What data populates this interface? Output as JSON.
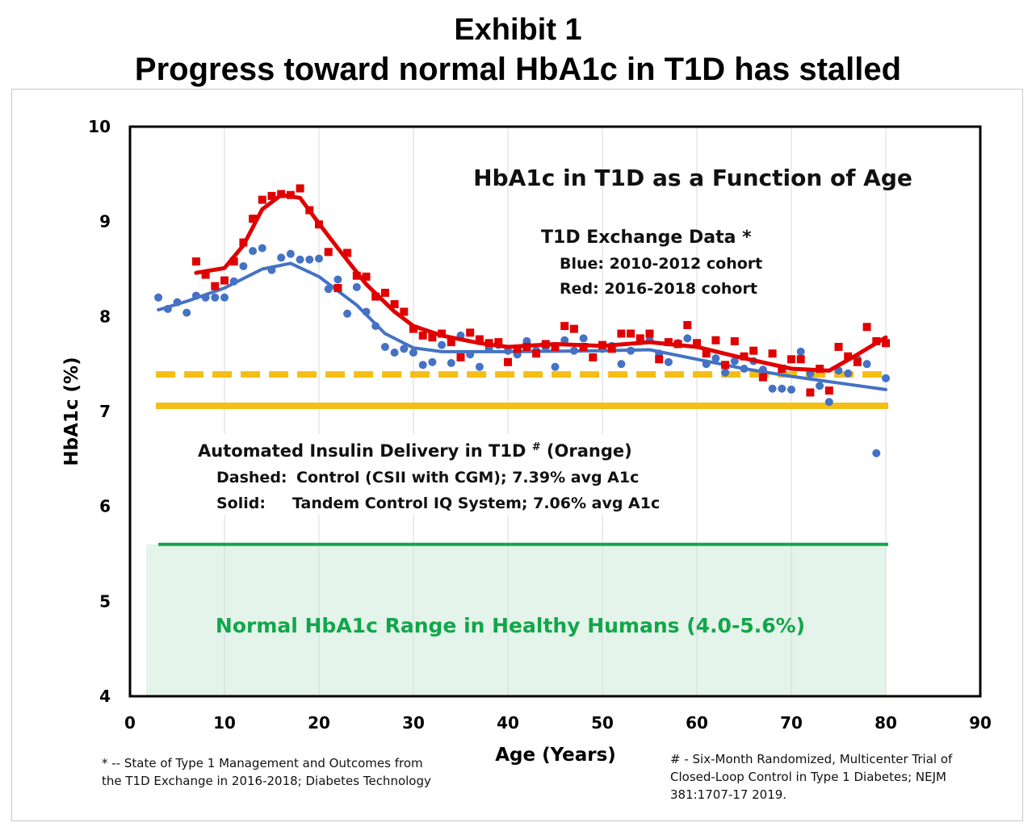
{
  "exhibit": {
    "title": "Exhibit 1",
    "subtitle": "Progress toward normal HbA1c in T1D has stalled"
  },
  "chart_data": {
    "type": "scatter",
    "title": "HbA1c in T1D as a Function of Age",
    "xlabel": "Age (Years)",
    "ylabel": "HbA1c (%)",
    "xlim": [
      0,
      90
    ],
    "ylim": [
      4,
      10
    ],
    "xticks": [
      0,
      10,
      20,
      30,
      40,
      50,
      60,
      70,
      80,
      90
    ],
    "yticks": [
      4,
      5,
      6,
      7,
      8,
      9,
      10
    ],
    "grid": "vertical",
    "legend": {
      "heading": "T1D Exchange Data *",
      "line1": "Blue: 2010-2012 cohort",
      "line2": "Red: 2016-2018 cohort"
    },
    "series": [
      {
        "name": "Blue: 2010-2012 cohort",
        "color": "#4472c4",
        "marker": "circle",
        "points": [
          [
            3,
            8.2
          ],
          [
            4,
            8.08
          ],
          [
            5,
            8.15
          ],
          [
            6,
            8.04
          ],
          [
            7,
            8.22
          ],
          [
            8,
            8.2
          ],
          [
            9,
            8.2
          ],
          [
            10,
            8.2
          ],
          [
            11,
            8.37
          ],
          [
            12,
            8.53
          ],
          [
            13,
            8.69
          ],
          [
            14,
            8.72
          ],
          [
            15,
            8.49
          ],
          [
            16,
            8.62
          ],
          [
            17,
            8.66
          ],
          [
            18,
            8.6
          ],
          [
            19,
            8.6
          ],
          [
            20,
            8.61
          ],
          [
            21,
            8.29
          ],
          [
            22,
            8.39
          ],
          [
            23,
            8.03
          ],
          [
            24,
            8.31
          ],
          [
            25,
            8.05
          ],
          [
            26,
            7.9
          ],
          [
            27,
            7.68
          ],
          [
            28,
            7.62
          ],
          [
            29,
            7.66
          ],
          [
            30,
            7.62
          ],
          [
            31,
            7.49
          ],
          [
            32,
            7.52
          ],
          [
            33,
            7.7
          ],
          [
            34,
            7.51
          ],
          [
            35,
            7.8
          ],
          [
            36,
            7.6
          ],
          [
            37,
            7.47
          ],
          [
            38,
            7.66
          ],
          [
            39,
            7.7
          ],
          [
            40,
            7.64
          ],
          [
            41,
            7.6
          ],
          [
            42,
            7.74
          ],
          [
            43,
            7.64
          ],
          [
            44,
            7.68
          ],
          [
            45,
            7.47
          ],
          [
            46,
            7.75
          ],
          [
            47,
            7.64
          ],
          [
            48,
            7.77
          ],
          [
            49,
            7.57
          ],
          [
            50,
            7.66
          ],
          [
            51,
            7.69
          ],
          [
            52,
            7.5
          ],
          [
            53,
            7.64
          ],
          [
            54,
            7.74
          ],
          [
            55,
            7.75
          ],
          [
            56,
            7.61
          ],
          [
            57,
            7.52
          ],
          [
            58,
            7.72
          ],
          [
            59,
            7.77
          ],
          [
            60,
            7.72
          ],
          [
            61,
            7.5
          ],
          [
            62,
            7.56
          ],
          [
            63,
            7.41
          ],
          [
            64,
            7.53
          ],
          [
            65,
            7.45
          ],
          [
            66,
            7.53
          ],
          [
            67,
            7.44
          ],
          [
            68,
            7.24
          ],
          [
            69,
            7.24
          ],
          [
            70,
            7.23
          ],
          [
            71,
            7.63
          ],
          [
            72,
            7.4
          ],
          [
            73,
            7.27
          ],
          [
            74,
            7.1
          ],
          [
            75,
            7.43
          ],
          [
            76,
            7.4
          ],
          [
            77,
            7.55
          ],
          [
            78,
            7.5
          ],
          [
            79,
            6.56
          ],
          [
            80,
            7.35
          ]
        ],
        "trend": [
          [
            3,
            8.07
          ],
          [
            6,
            8.16
          ],
          [
            10,
            8.3
          ],
          [
            14,
            8.5
          ],
          [
            17,
            8.56
          ],
          [
            20,
            8.42
          ],
          [
            24,
            8.12
          ],
          [
            27,
            7.82
          ],
          [
            30,
            7.67
          ],
          [
            33,
            7.63
          ],
          [
            40,
            7.63
          ],
          [
            50,
            7.64
          ],
          [
            55,
            7.65
          ],
          [
            60,
            7.55
          ],
          [
            65,
            7.45
          ],
          [
            70,
            7.37
          ],
          [
            75,
            7.3
          ],
          [
            80,
            7.23
          ]
        ]
      },
      {
        "name": "Red: 2016-2018 cohort",
        "color": "#e00000",
        "marker": "square",
        "points": [
          [
            7,
            8.58
          ],
          [
            8,
            8.44
          ],
          [
            9,
            8.32
          ],
          [
            10,
            8.38
          ],
          [
            11,
            8.58
          ],
          [
            12,
            8.78
          ],
          [
            13,
            9.03
          ],
          [
            14,
            9.23
          ],
          [
            15,
            9.27
          ],
          [
            16,
            9.29
          ],
          [
            17,
            9.28
          ],
          [
            18,
            9.35
          ],
          [
            19,
            9.12
          ],
          [
            20,
            8.97
          ],
          [
            21,
            8.68
          ],
          [
            22,
            8.3
          ],
          [
            23,
            8.67
          ],
          [
            24,
            8.43
          ],
          [
            25,
            8.42
          ],
          [
            26,
            8.21
          ],
          [
            27,
            8.25
          ],
          [
            28,
            8.13
          ],
          [
            29,
            8.05
          ],
          [
            30,
            7.87
          ],
          [
            31,
            7.8
          ],
          [
            32,
            7.78
          ],
          [
            33,
            7.82
          ],
          [
            34,
            7.73
          ],
          [
            35,
            7.57
          ],
          [
            36,
            7.83
          ],
          [
            37,
            7.76
          ],
          [
            38,
            7.72
          ],
          [
            39,
            7.73
          ],
          [
            40,
            7.52
          ],
          [
            41,
            7.66
          ],
          [
            42,
            7.68
          ],
          [
            43,
            7.61
          ],
          [
            44,
            7.71
          ],
          [
            45,
            7.68
          ],
          [
            46,
            7.9
          ],
          [
            47,
            7.87
          ],
          [
            48,
            7.68
          ],
          [
            49,
            7.57
          ],
          [
            50,
            7.7
          ],
          [
            51,
            7.66
          ],
          [
            52,
            7.82
          ],
          [
            53,
            7.82
          ],
          [
            54,
            7.77
          ],
          [
            55,
            7.82
          ],
          [
            56,
            7.55
          ],
          [
            57,
            7.73
          ],
          [
            58,
            7.71
          ],
          [
            59,
            7.91
          ],
          [
            60,
            7.72
          ],
          [
            61,
            7.61
          ],
          [
            62,
            7.75
          ],
          [
            63,
            7.49
          ],
          [
            64,
            7.74
          ],
          [
            65,
            7.58
          ],
          [
            66,
            7.64
          ],
          [
            67,
            7.36
          ],
          [
            68,
            7.61
          ],
          [
            69,
            7.45
          ],
          [
            70,
            7.55
          ],
          [
            71,
            7.55
          ],
          [
            72,
            7.2
          ],
          [
            73,
            7.45
          ],
          [
            74,
            7.22
          ],
          [
            75,
            7.68
          ],
          [
            76,
            7.58
          ],
          [
            77,
            7.52
          ],
          [
            78,
            7.89
          ],
          [
            79,
            7.74
          ],
          [
            80,
            7.72
          ]
        ],
        "trend": [
          [
            7,
            8.46
          ],
          [
            10,
            8.51
          ],
          [
            12,
            8.75
          ],
          [
            14,
            9.13
          ],
          [
            16,
            9.28
          ],
          [
            18,
            9.25
          ],
          [
            20,
            8.98
          ],
          [
            22,
            8.72
          ],
          [
            25,
            8.34
          ],
          [
            28,
            8.05
          ],
          [
            30,
            7.9
          ],
          [
            33,
            7.8
          ],
          [
            37,
            7.72
          ],
          [
            40,
            7.68
          ],
          [
            45,
            7.71
          ],
          [
            50,
            7.69
          ],
          [
            55,
            7.73
          ],
          [
            60,
            7.68
          ],
          [
            65,
            7.56
          ],
          [
            70,
            7.45
          ],
          [
            74,
            7.43
          ],
          [
            77,
            7.6
          ],
          [
            80,
            7.78
          ]
        ]
      }
    ],
    "reference_lines": [
      {
        "name": "Dashed: Control (CSII with CGM); 7.39% avg A1c",
        "y": 7.39,
        "x_range": [
          3,
          80
        ],
        "color": "#f5be14",
        "style": "dashed"
      },
      {
        "name": "Solid: Tandem Control IQ System; 7.06% avg A1c",
        "y": 7.06,
        "x_range": [
          3,
          80
        ],
        "color": "#f5be14",
        "style": "solid"
      },
      {
        "name": "Normal range upper limit",
        "y": 5.6,
        "x_range": [
          3,
          80
        ],
        "color": "#12a64a",
        "style": "solid"
      }
    ],
    "shaded_region": {
      "name": "Normal HbA1c Range in Healthy Humans (4.0-5.6%)",
      "y_range": [
        4.0,
        5.6
      ],
      "x_range": [
        3,
        80
      ],
      "color": "#e4f4ea"
    },
    "annotations": {
      "aid_title": "Automated Insulin Delivery in T1D",
      "aid_sup": "#",
      "aid_suffix": "(Orange)",
      "dashed_label": "Dashed:",
      "dashed_text": "Control (CSII with CGM);  7.39% avg A1c",
      "solid_label": "Solid:",
      "solid_text": "Tandem Control IQ System; 7.06% avg A1c",
      "normal_range": "Normal HbA1c Range in Healthy Humans (4.0-5.6%)"
    }
  },
  "footnotes": {
    "left_line1": "* -- State of Type 1 Management and Outcomes from",
    "left_line2": "the T1D Exchange in 2016-2018; Diabetes Technology",
    "right_line1": "# - Six-Month Randomized, Multicenter Trial of",
    "right_line2": "Closed-Loop Control in Type 1 Diabetes; NEJM",
    "right_line3": "381:1707-17 2019."
  }
}
